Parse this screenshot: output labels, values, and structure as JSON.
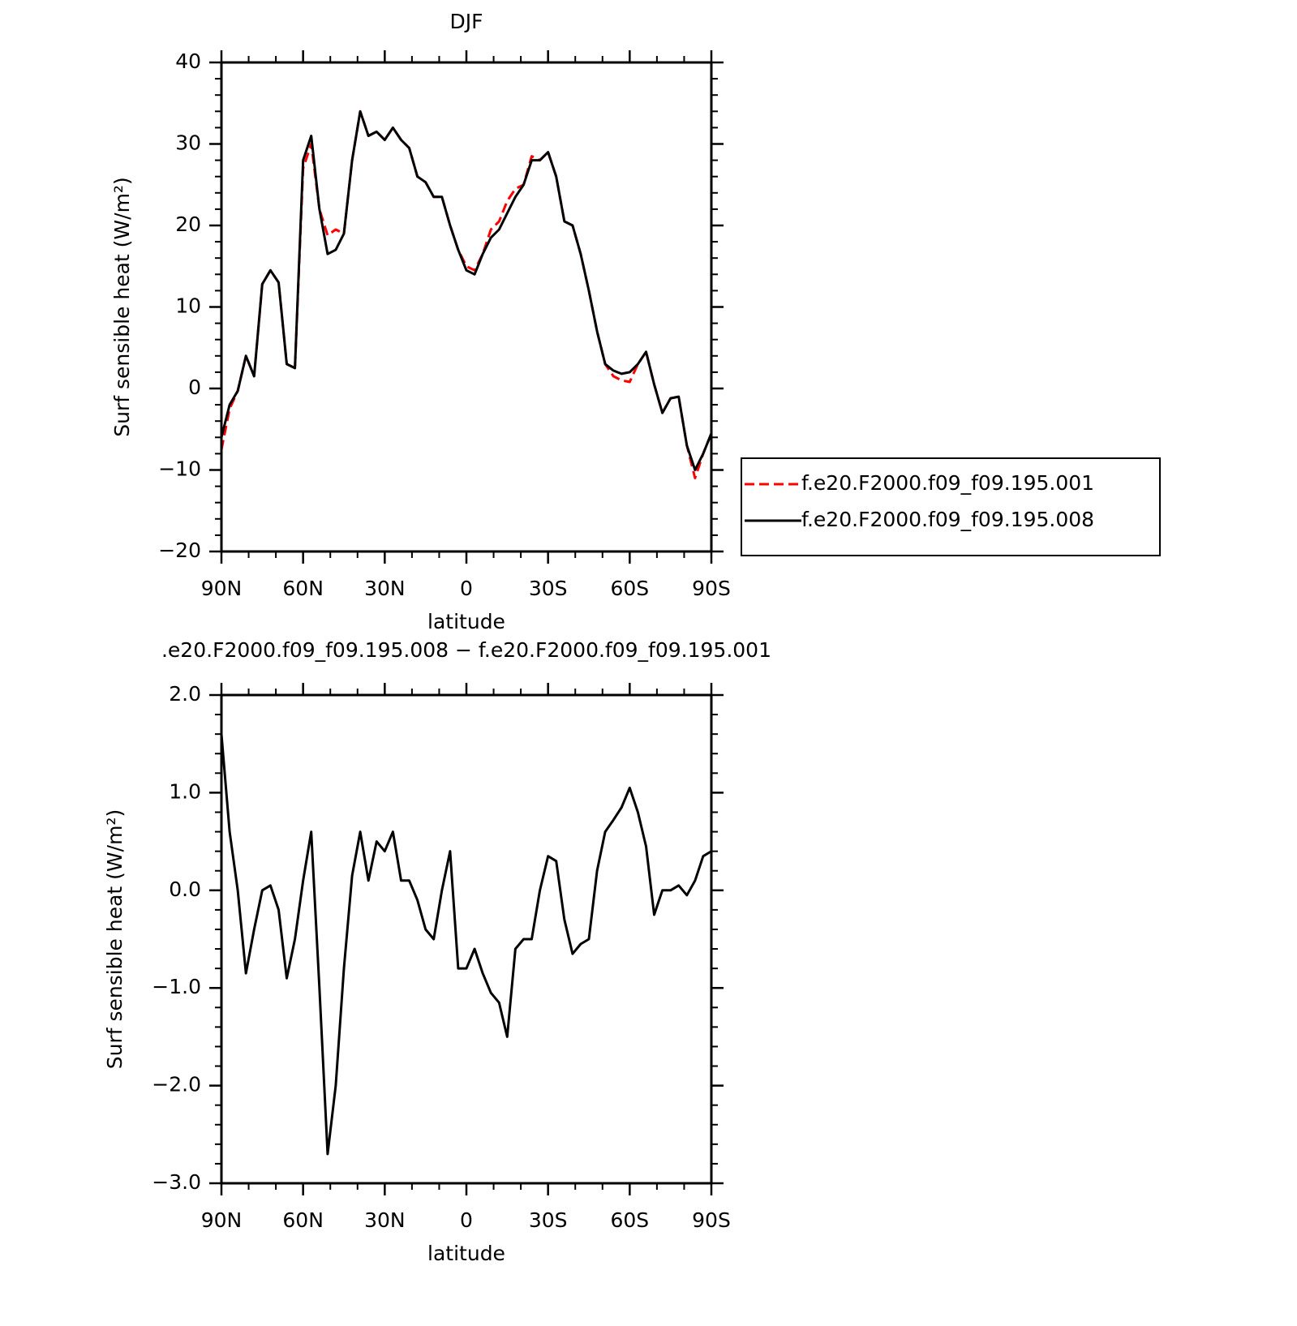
{
  "chart_data": [
    {
      "type": "line",
      "title": "DJF",
      "xlabel": "latitude",
      "ylabel": "Surf sensible heat (W/m²)",
      "x": [
        90,
        87,
        84,
        81,
        78,
        75,
        72,
        69,
        66,
        63,
        60,
        57,
        54,
        51,
        48,
        45,
        42,
        39,
        36,
        33,
        30,
        27,
        24,
        21,
        18,
        15,
        12,
        9,
        6,
        3,
        0,
        -3,
        -6,
        -9,
        -12,
        -15,
        -18,
        -21,
        -24,
        -27,
        -30,
        -33,
        -36,
        -39,
        -42,
        -45,
        -48,
        -51,
        -54,
        -57,
        -60,
        -63,
        -66,
        -69,
        -72,
        -75,
        -78,
        -81,
        -84,
        -87,
        -90
      ],
      "xlim": [
        90,
        -90
      ],
      "xticks": [
        {
          "value": 90,
          "label": "90N"
        },
        {
          "value": 60,
          "label": "60N"
        },
        {
          "value": 30,
          "label": "30N"
        },
        0,
        {
          "value": -30,
          "label": "30S"
        },
        {
          "value": -60,
          "label": "60S"
        },
        {
          "value": -90,
          "label": "90S"
        }
      ],
      "ylim": [
        -20,
        40
      ],
      "yticks": [
        {
          "value": -20,
          "label": "−20"
        },
        {
          "value": -10,
          "label": "−10"
        },
        0,
        10,
        20,
        30,
        40
      ],
      "legend": "right",
      "series": [
        {
          "name": "f.e20.F2000.f09_f09.195.001",
          "color": "#ff0000",
          "dash": "dashed",
          "values": [
            -7.5,
            -2.5,
            -0.3,
            4,
            1.5,
            12.8,
            14.5,
            13,
            3,
            2.5,
            27,
            30,
            22,
            18.8,
            19.5,
            19,
            28,
            34,
            31,
            31.5,
            30.5,
            32,
            30.5,
            29.5,
            26,
            25.3,
            23.5,
            23.5,
            20,
            17,
            15,
            14.5,
            16.5,
            19.5,
            20.5,
            23,
            24.5,
            25,
            28.5,
            28,
            29,
            26,
            20.5,
            20,
            16.5,
            12,
            7,
            3,
            1.5,
            1,
            0.8,
            3,
            4.5,
            0.5,
            -3,
            -1.2,
            -1,
            -7,
            -11,
            -8,
            -5.5
          ]
        },
        {
          "name": "f.e20.F2000.f09_f09.195.008",
          "color": "#000000",
          "dash": "solid",
          "values": [
            -6,
            -2,
            -0.3,
            4,
            1.5,
            12.8,
            14.5,
            13,
            3,
            2.5,
            28,
            31,
            22,
            16.5,
            17,
            19,
            28,
            34,
            31,
            31.5,
            30.5,
            32,
            30.5,
            29.5,
            26,
            25.3,
            23.5,
            23.5,
            20,
            17,
            14.5,
            14,
            16.5,
            18.5,
            19.5,
            21.5,
            23.5,
            25,
            28,
            28,
            29,
            26,
            20.5,
            20,
            16.5,
            12,
            7,
            3,
            2.2,
            1.8,
            2,
            3,
            4.5,
            0.5,
            -3,
            -1.2,
            -1,
            -7,
            -10,
            -8,
            -5.5
          ]
        }
      ]
    },
    {
      "type": "line",
      "title": ".e20.F2000.f09_f09.195.008 − f.e20.F2000.f09_f09.195.001",
      "xlabel": "latitude",
      "ylabel": "Surf sensible heat (W/m²)",
      "x": [
        90,
        87,
        84,
        81,
        78,
        75,
        72,
        69,
        66,
        63,
        60,
        57,
        54,
        51,
        48,
        45,
        42,
        39,
        36,
        33,
        30,
        27,
        24,
        21,
        18,
        15,
        12,
        9,
        6,
        3,
        0,
        -3,
        -6,
        -9,
        -12,
        -15,
        -18,
        -21,
        -24,
        -27,
        -30,
        -33,
        -36,
        -39,
        -42,
        -45,
        -48,
        -51,
        -54,
        -57,
        -60,
        -63,
        -66,
        -69,
        -72,
        -75,
        -78,
        -81,
        -84,
        -87,
        -90
      ],
      "xlim": [
        90,
        -90
      ],
      "xticks": [
        {
          "value": 90,
          "label": "90N"
        },
        {
          "value": 60,
          "label": "60N"
        },
        {
          "value": 30,
          "label": "30N"
        },
        0,
        {
          "value": -30,
          "label": "30S"
        },
        {
          "value": -60,
          "label": "60S"
        },
        {
          "value": -90,
          "label": "90S"
        }
      ],
      "ylim": [
        -3,
        2
      ],
      "yticks": [
        {
          "value": -3,
          "label": "−3.0"
        },
        {
          "value": -2,
          "label": "−2.0"
        },
        {
          "value": -1,
          "label": "−1.0"
        },
        {
          "value": 0,
          "label": "0.0"
        },
        {
          "value": 1,
          "label": "1.0"
        },
        {
          "value": 2,
          "label": "2.0"
        }
      ],
      "series": [
        {
          "color": "#000000",
          "dash": "solid",
          "values": [
            1.6,
            0.6,
            0.0,
            -0.85,
            -0.4,
            0.0,
            0.05,
            -0.2,
            -0.9,
            -0.5,
            0.1,
            0.6,
            -1.0,
            -2.7,
            -2.0,
            -0.8,
            0.15,
            0.6,
            0.1,
            0.5,
            0.4,
            0.6,
            0.1,
            0.1,
            -0.1,
            -0.4,
            -0.5,
            0.0,
            0.4,
            -0.8,
            -0.8,
            -0.6,
            -0.85,
            -1.05,
            -1.15,
            -1.5,
            -0.6,
            -0.5,
            -0.5,
            0.0,
            0.35,
            0.3,
            -0.3,
            -0.65,
            -0.55,
            -0.5,
            0.2,
            0.6,
            0.72,
            0.85,
            1.05,
            0.8,
            0.45,
            -0.25,
            0.0,
            0.0,
            0.05,
            -0.05,
            0.1,
            0.35,
            0.4
          ]
        }
      ]
    }
  ]
}
